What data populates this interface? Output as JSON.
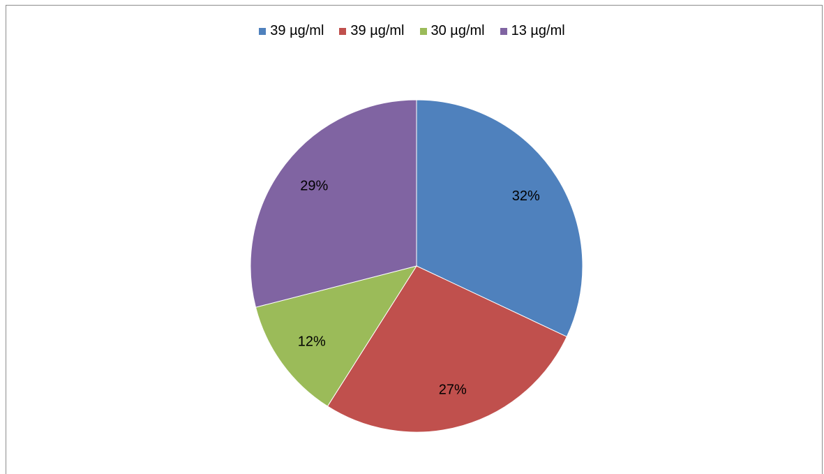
{
  "chart_data": {
    "type": "pie",
    "title": "",
    "legend_position": "top",
    "categories": [
      "39 µg/ml",
      "39 µg/ml",
      "30 µg/ml",
      "13 µg/ml"
    ],
    "values": [
      32,
      27,
      12,
      29
    ],
    "labels": [
      "32%",
      "27%",
      "12%",
      "29%"
    ],
    "colors": [
      "#4f81bd",
      "#c0504d",
      "#9bbb59",
      "#8064a2"
    ]
  }
}
